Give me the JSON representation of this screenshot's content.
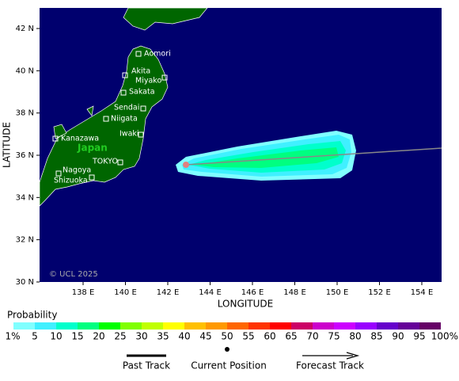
{
  "map": {
    "xlabel": "LONGITUDE",
    "ylabel": "LATITUDE",
    "copyright": "© UCL 2025",
    "region_label": "Japan",
    "lon_ticks": [
      "138 E",
      "140 E",
      "142 E",
      "144 E",
      "146 E",
      "148 E",
      "150 E",
      "152 E",
      "154 E"
    ],
    "lat_ticks": [
      "42 N",
      "40 N",
      "38 N",
      "36 N",
      "34 N",
      "32 N",
      "30 N"
    ],
    "cities": [
      "Aomori",
      "Akita",
      "Miyako",
      "Sakata",
      "Sendai",
      "Niigata",
      "Iwaki",
      "Kanazawa",
      "TOKYO",
      "Nagoya",
      "Shizuoka"
    ]
  },
  "legend": {
    "title": "Probability",
    "labels": [
      "1%",
      "5",
      "10",
      "15",
      "20",
      "25",
      "30",
      "35",
      "40",
      "45",
      "50",
      "55",
      "60",
      "65",
      "70",
      "75",
      "80",
      "85",
      "90",
      "95",
      "100%"
    ],
    "colors": [
      "#80ffff",
      "#40f0ff",
      "#00ffcc",
      "#00ff80",
      "#00ff00",
      "#80ff00",
      "#c0ff00",
      "#ffff00",
      "#ffc000",
      "#ff9900",
      "#ff6600",
      "#ff3300",
      "#ff0000",
      "#cc0066",
      "#cc00cc",
      "#cc00ff",
      "#9900ff",
      "#6600cc",
      "#660099",
      "#660066"
    ],
    "past_track": "Past Track",
    "current_position": "Current Position",
    "forecast_track": "Forecast Track"
  }
}
